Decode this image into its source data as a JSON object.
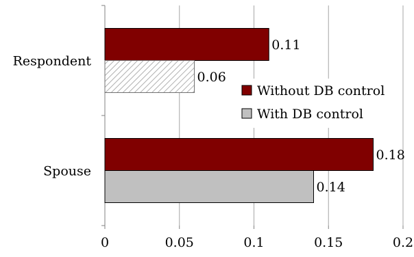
{
  "chart_data": {
    "type": "bar",
    "orientation": "horizontal",
    "categories": [
      "Respondent",
      "Spouse"
    ],
    "series": [
      {
        "name": "Without DB control",
        "values": [
          0.11,
          0.18
        ],
        "value_labels": [
          "0.11",
          "0.18"
        ],
        "color": "#800000",
        "pattern": "solid"
      },
      {
        "name": "With DB control",
        "values": [
          0.06,
          0.14
        ],
        "value_labels": [
          "0.06",
          "0.14"
        ],
        "color": "#c0c0c0",
        "pattern_by_category": [
          "hatched",
          "solid"
        ]
      }
    ],
    "xlim": [
      0,
      0.2
    ],
    "xticks": [
      0,
      0.05,
      0.1,
      0.15,
      0.2
    ],
    "xtick_labels": [
      "0",
      "0.05",
      "0.1",
      "0.15",
      "0.2"
    ],
    "grid": "vertical",
    "legend_position": "right-center",
    "title": "",
    "xlabel": "",
    "ylabel": ""
  }
}
